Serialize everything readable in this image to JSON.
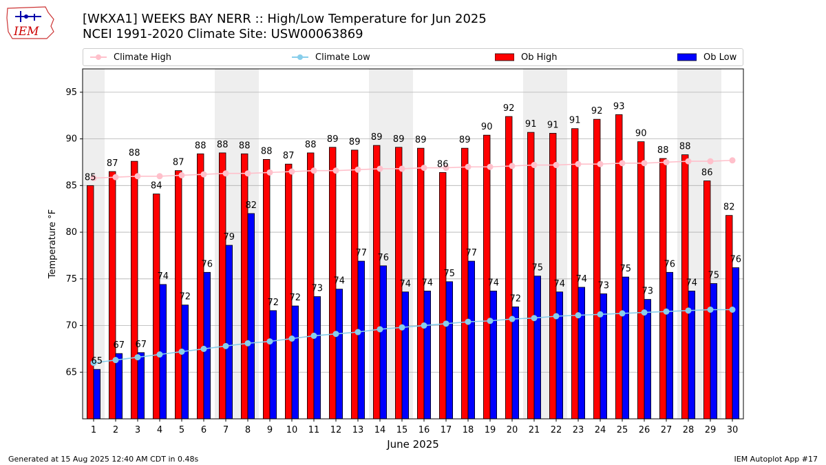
{
  "title_line1": "[WKXA1] WEEKS BAY NERR :: High/Low Temperature for Jun 2025",
  "title_line2": "NCEI 1991-2020 Climate Site: USW00063869",
  "logo_text": "IEM",
  "footer_left": "Generated at 15 Aug 2025 12:40 AM CDT in 0.48s",
  "footer_right": "IEM Autoplot App #17",
  "legend": {
    "climate_high": "Climate High",
    "climate_low": "Climate Low",
    "ob_high": "Ob High",
    "ob_low": "Ob Low"
  },
  "colors": {
    "ob_high": "#ff0000",
    "ob_low": "#0000ff",
    "climate_high": "#ffc0cb",
    "climate_low": "#87ceeb",
    "weekend_band": "#eeeeee",
    "grid": "#b0b0b0"
  },
  "chart_data": {
    "type": "bar",
    "xlabel": "June 2025",
    "ylabel": "Temperature °F",
    "ylim": [
      60,
      97.5
    ],
    "yticks": [
      65,
      70,
      75,
      80,
      85,
      90,
      95
    ],
    "grid": "horizontal",
    "legend_position": "top",
    "weekend_days": [
      1,
      7,
      8,
      14,
      15,
      21,
      22,
      28,
      29
    ],
    "categories": [
      "1",
      "2",
      "3",
      "4",
      "5",
      "6",
      "7",
      "8",
      "9",
      "10",
      "11",
      "12",
      "13",
      "14",
      "15",
      "16",
      "17",
      "18",
      "19",
      "20",
      "21",
      "22",
      "23",
      "24",
      "25",
      "26",
      "27",
      "28",
      "29",
      "30"
    ],
    "series": [
      {
        "name": "Ob High",
        "kind": "bar",
        "values": [
          85.0,
          86.5,
          87.6,
          84.1,
          86.6,
          88.4,
          88.5,
          88.4,
          87.8,
          87.3,
          88.5,
          89.1,
          88.8,
          89.3,
          89.1,
          89.0,
          86.4,
          89.0,
          90.4,
          92.4,
          90.7,
          90.6,
          91.1,
          92.1,
          92.6,
          89.7,
          87.9,
          88.3,
          85.5,
          81.8
        ],
        "labels": [
          "85",
          "87",
          "88",
          "84",
          "87",
          "88",
          "88",
          "88",
          "88",
          "87",
          "88",
          "89",
          "89",
          "89",
          "89",
          "89",
          "86",
          "89",
          "90",
          "92",
          "91",
          "91",
          "91",
          "92",
          "93",
          "90",
          "88",
          "88",
          "86",
          "82"
        ]
      },
      {
        "name": "Ob Low",
        "kind": "bar",
        "values": [
          65.3,
          67.0,
          67.1,
          74.4,
          72.2,
          75.7,
          78.6,
          82.0,
          71.6,
          72.1,
          73.1,
          73.9,
          76.9,
          76.4,
          73.6,
          73.7,
          74.7,
          76.9,
          73.7,
          72.0,
          75.3,
          73.6,
          74.1,
          73.4,
          75.2,
          72.8,
          75.7,
          73.7,
          74.5,
          76.2
        ],
        "labels": [
          "65",
          "67",
          "67",
          "74",
          "72",
          "76",
          "79",
          "82",
          "72",
          "72",
          "73",
          "74",
          "77",
          "76",
          "74",
          "74",
          "75",
          "77",
          "74",
          "72",
          "75",
          "74",
          "74",
          "73",
          "75",
          "73",
          "76",
          "74",
          "75",
          "76"
        ]
      },
      {
        "name": "Climate High",
        "kind": "line",
        "values": [
          85.8,
          85.9,
          86.0,
          86.0,
          86.1,
          86.2,
          86.3,
          86.3,
          86.4,
          86.5,
          86.6,
          86.6,
          86.7,
          86.8,
          86.8,
          86.9,
          86.9,
          87.0,
          87.0,
          87.1,
          87.2,
          87.2,
          87.3,
          87.3,
          87.4,
          87.4,
          87.5,
          87.6,
          87.6,
          87.7
        ]
      },
      {
        "name": "Climate Low",
        "kind": "line",
        "values": [
          66.0,
          66.3,
          66.6,
          66.9,
          67.2,
          67.5,
          67.8,
          68.1,
          68.3,
          68.6,
          68.9,
          69.1,
          69.3,
          69.6,
          69.8,
          70.0,
          70.2,
          70.4,
          70.5,
          70.7,
          70.8,
          71.0,
          71.1,
          71.2,
          71.3,
          71.4,
          71.5,
          71.6,
          71.7,
          71.7
        ]
      }
    ]
  }
}
